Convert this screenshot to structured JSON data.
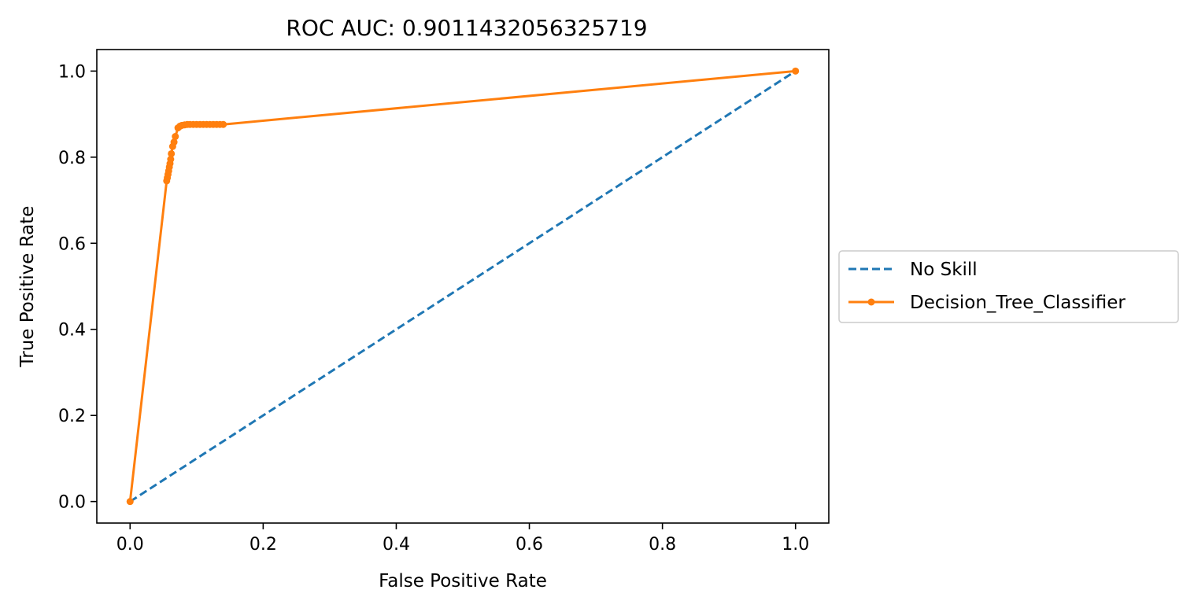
{
  "chart_data": {
    "type": "line",
    "title": "ROC AUC: 0.9011432056325719",
    "xlabel": "False Positive Rate",
    "ylabel": "True Positive Rate",
    "xlim": [
      -0.05,
      1.05
    ],
    "ylim": [
      -0.05,
      1.05
    ],
    "xticks": [
      0.0,
      0.2,
      0.4,
      0.6,
      0.8,
      1.0
    ],
    "xtick_labels": [
      "0.0",
      "0.2",
      "0.4",
      "0.6",
      "0.8",
      "1.0"
    ],
    "yticks": [
      0.0,
      0.2,
      0.4,
      0.6,
      0.8,
      1.0
    ],
    "ytick_labels": [
      "0.0",
      "0.2",
      "0.4",
      "0.6",
      "0.8",
      "1.0"
    ],
    "grid": false,
    "legend_placement": "outside-right",
    "series": [
      {
        "name": "No Skill",
        "style": "dashed",
        "marker": "none",
        "color": "#1f77b4",
        "x": [
          0.0,
          1.0
        ],
        "y": [
          0.0,
          1.0
        ]
      },
      {
        "name": "Decision_Tree_Classifier",
        "style": "solid",
        "marker": "dot",
        "color": "#ff7f0e",
        "x": [
          0.0,
          0.055,
          0.056,
          0.057,
          0.058,
          0.059,
          0.06,
          0.061,
          0.062,
          0.064,
          0.066,
          0.068,
          0.072,
          0.075,
          0.078,
          0.082,
          0.086,
          0.09,
          0.095,
          0.1,
          0.105,
          0.11,
          0.115,
          0.12,
          0.125,
          0.13,
          0.135,
          0.14,
          1.0
        ],
        "y": [
          0.0,
          0.745,
          0.752,
          0.76,
          0.768,
          0.777,
          0.785,
          0.795,
          0.808,
          0.825,
          0.835,
          0.848,
          0.868,
          0.872,
          0.874,
          0.875,
          0.876,
          0.876,
          0.876,
          0.876,
          0.876,
          0.876,
          0.876,
          0.876,
          0.876,
          0.876,
          0.876,
          0.876,
          1.0
        ]
      }
    ]
  }
}
